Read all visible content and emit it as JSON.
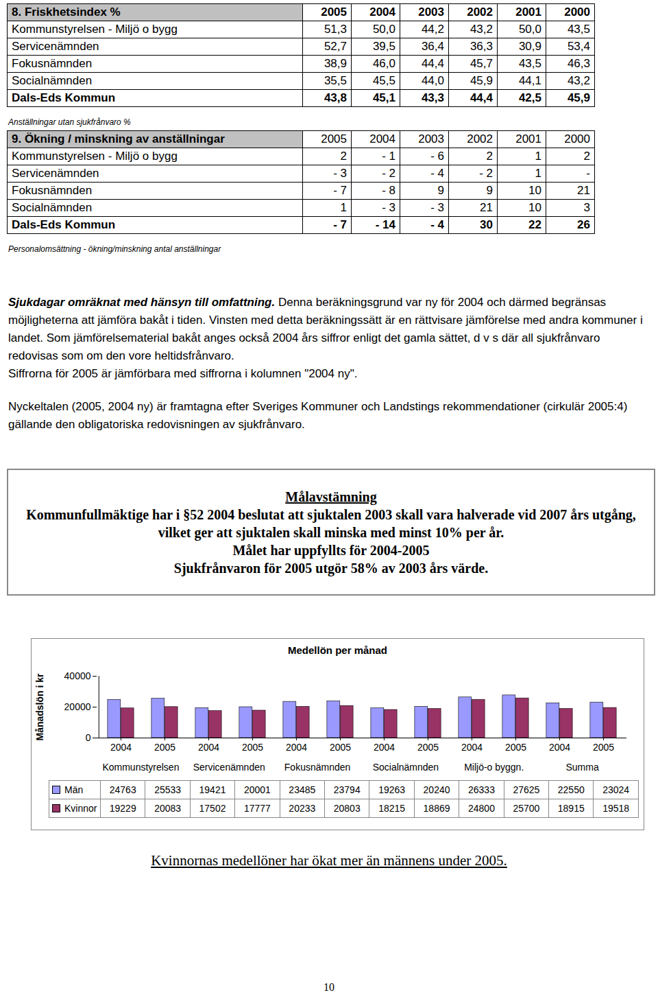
{
  "tables": [
    {
      "title": "8. Friskhetsindex %",
      "columns": [
        "2005",
        "2004",
        "2003",
        "2002",
        "2001",
        "2000"
      ],
      "rows": [
        {
          "label": "Kommunstyrelsen - Miljö o bygg",
          "values": [
            "51,3",
            "50,0",
            "44,2",
            "43,2",
            "50,0",
            "43,5"
          ]
        },
        {
          "label": "Servicenämnden",
          "values": [
            "52,7",
            "39,5",
            "36,4",
            "36,3",
            "30,9",
            "53,4"
          ]
        },
        {
          "label": "Fokusnämnden",
          "values": [
            "38,9",
            "46,0",
            "44,4",
            "45,7",
            "43,5",
            "46,3"
          ]
        },
        {
          "label": "Socialnämnden",
          "values": [
            "35,5",
            "45,5",
            "44,0",
            "45,9",
            "44,1",
            "43,2"
          ]
        },
        {
          "label": "Dals-Eds Kommun",
          "values": [
            "43,8",
            "45,1",
            "43,3",
            "44,4",
            "42,5",
            "45,9"
          ]
        }
      ],
      "footnote": "Anställningar utan sjukfrånvaro %"
    },
    {
      "title": "9. Ökning / minskning av anställningar",
      "columns": [
        "2005",
        "2004",
        "2003",
        "2002",
        "2001",
        "2000"
      ],
      "rows": [
        {
          "label": "Kommunstyrelsen - Miljö o bygg",
          "values": [
            "2",
            "- 1",
            "- 6",
            "2",
            "1",
            "2"
          ]
        },
        {
          "label": "Servicenämnden",
          "values": [
            "- 3",
            "- 2",
            "- 4",
            "- 2",
            "1",
            "-"
          ]
        },
        {
          "label": "Fokusnämnden",
          "values": [
            "- 7",
            "- 8",
            "9",
            "9",
            "10",
            "21"
          ]
        },
        {
          "label": "Socialnämnden",
          "values": [
            "1",
            "- 3",
            "- 3",
            "21",
            "10",
            "3"
          ]
        },
        {
          "label": "Dals-Eds Kommun",
          "values": [
            "- 7",
            "- 14",
            "- 4",
            "30",
            "22",
            "26"
          ]
        }
      ],
      "footnote": "Personalomsättning - ökning/minskning antal anställningar"
    }
  ],
  "paragraphs": [
    {
      "lead": "Sjukdagar omräknat med hänsyn till omfattning.",
      "text": "Denna beräkningsgrund var ny för 2004 och därmed begränsas möjligheterna att jämföra bakåt i tiden. Vinsten med detta beräkningssätt är en rättvisare jämförelse med andra kommuner i landet. Som jämförelsematerial bakåt anges också 2004 års siffror enligt det gamla sättet, d v s där all sjukfrånvaro redovisas som om den vore heltidsfrånvaro."
    },
    {
      "lead": "",
      "text": "Siffrorna för 2005 är jämförbara med siffrorna i kolumnen \"2004 ny\"."
    },
    {
      "lead": "",
      "text": "Nyckeltalen (2005, 2004 ny) är framtagna efter Sveriges Kommuner och Landstings rekommendationer (cirkulär 2005:4) gällande den obligatoriska redovisningen av sjukfrånvaro."
    }
  ],
  "goal_box": {
    "heading": "Målavstämning",
    "lines": [
      "Kommunfullmäktige har i §52 2004 beslutat att sjuktalen 2003 skall vara halverade vid 2007 års utgång, vilket ger att sjuktalen skall minska med minst 10% per år.",
      "Målet har uppfyllts för 2004-2005",
      "Sjukfrånvaron för 2005 utgör 58% av 2003 års värde."
    ]
  },
  "chart_data": {
    "type": "bar",
    "title": "Medellön per månad",
    "y_label": "Månadslön i kr",
    "categories": [
      "2004",
      "2005",
      "2004",
      "2005",
      "2004",
      "2005",
      "2004",
      "2005",
      "2004",
      "2005",
      "2004",
      "2005"
    ],
    "groups": [
      "Kommunstyrelsen",
      "Servicenämnden",
      "Fokusnämnden",
      "Socialnämnden",
      "Miljö-o byggn.",
      "Summa"
    ],
    "series": [
      {
        "name": "Män",
        "color": "#9999ff",
        "values": [
          24763,
          25533,
          19421,
          20001,
          23485,
          23794,
          19263,
          20240,
          26333,
          27625,
          22550,
          23024
        ]
      },
      {
        "name": "Kvinnor",
        "color": "#993366",
        "values": [
          19229,
          20083,
          17502,
          17777,
          20233,
          20803,
          18215,
          18869,
          24800,
          25700,
          18915,
          19518
        ]
      }
    ],
    "ylim": [
      0,
      40000
    ],
    "yticks": [
      0,
      20000,
      40000
    ]
  },
  "caption": "Kvinnornas medellöner har ökat mer än männens under 2005.",
  "page_number": "10"
}
